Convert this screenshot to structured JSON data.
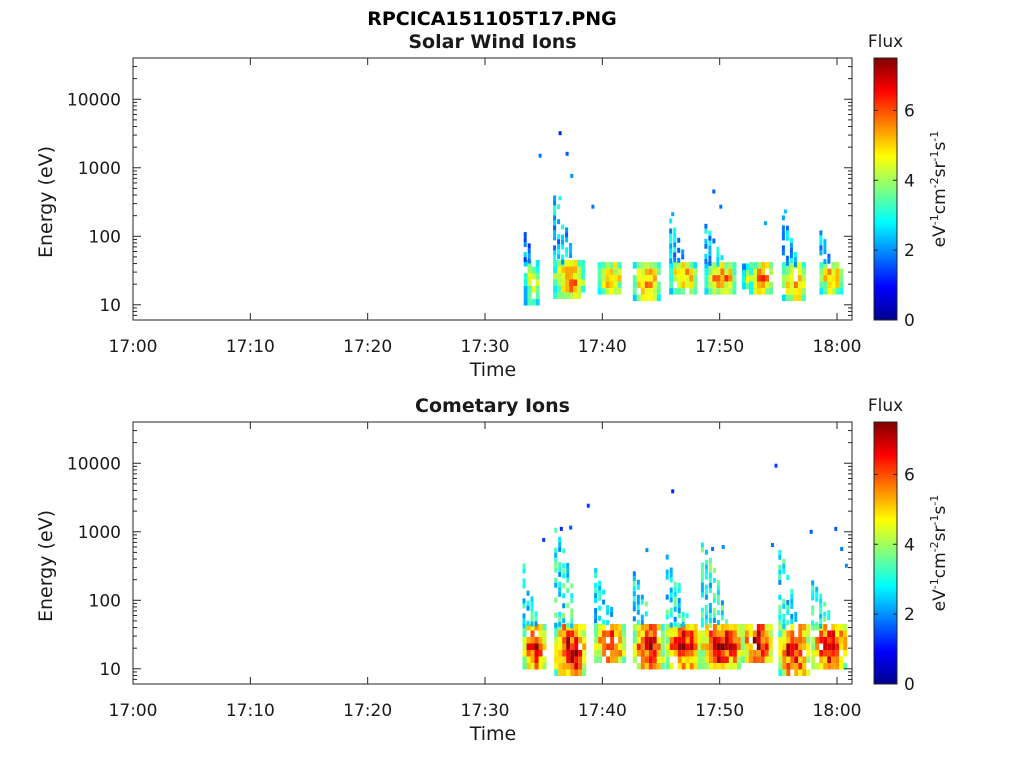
{
  "page": {
    "filename": "RPCICA151105T17.PNG"
  },
  "chart_data": [
    {
      "type": "heatmap",
      "title": "Solar Wind Ions",
      "xlabel": "Time",
      "ylabel": "Energy (eV)",
      "x_ticks": [
        "17:00",
        "17:10",
        "17:20",
        "17:30",
        "17:40",
        "17:50",
        "18:00"
      ],
      "x_range_minutes": [
        0,
        61
      ],
      "y_scale": "log",
      "y_ticks": [
        "10",
        "100",
        "1000",
        "10000"
      ],
      "y_range": [
        6,
        40000
      ],
      "colorbar": {
        "title": "Flux",
        "label": "eV-1cm-2sr-1s-1",
        "ticks": [
          "0",
          "2",
          "4",
          "6"
        ],
        "range": [
          0,
          7.5
        ],
        "colormap": "jet"
      },
      "bursts": [
        {
          "start": 33.3,
          "end": 34.6,
          "e_low": 12,
          "e_high": 45,
          "peak": 4.6,
          "tail": 70
        },
        {
          "start": 35.8,
          "end": 38.3,
          "e_low": 13,
          "e_high": 45,
          "peak": 5.8,
          "tail": 350
        },
        {
          "start": 39.6,
          "end": 41.6,
          "e_low": 15,
          "e_high": 42,
          "peak": 5.6,
          "tail": 0
        },
        {
          "start": 42.6,
          "end": 44.7,
          "e_low": 13,
          "e_high": 42,
          "peak": 5.7,
          "tail": 0
        },
        {
          "start": 45.7,
          "end": 47.8,
          "e_low": 17,
          "e_high": 42,
          "peak": 5.8,
          "tail": 140
        },
        {
          "start": 48.7,
          "end": 51.2,
          "e_low": 17,
          "e_high": 42,
          "peak": 5.9,
          "tail": 110
        },
        {
          "start": 51.9,
          "end": 53.0,
          "e_low": 18,
          "e_high": 40,
          "peak": 4.5,
          "tail": 0
        },
        {
          "start": 52.5,
          "end": 54.4,
          "e_low": 17,
          "e_high": 42,
          "peak": 6.0,
          "tail": 0
        },
        {
          "start": 55.3,
          "end": 57.2,
          "e_low": 12,
          "e_high": 42,
          "peak": 5.8,
          "tail": 160
        },
        {
          "start": 58.5,
          "end": 60.3,
          "e_low": 17,
          "e_high": 42,
          "peak": 5.8,
          "tail": 80
        }
      ],
      "sparse_points": [
        {
          "t": 34.7,
          "e": 1500,
          "v": 1.8
        },
        {
          "t": 36.4,
          "e": 3200,
          "v": 1.2
        },
        {
          "t": 37.0,
          "e": 1600,
          "v": 1.6
        },
        {
          "t": 37.4,
          "e": 760,
          "v": 2.0
        },
        {
          "t": 39.2,
          "e": 270,
          "v": 1.8
        },
        {
          "t": 46.0,
          "e": 210,
          "v": 2.2
        },
        {
          "t": 49.5,
          "e": 450,
          "v": 1.6
        },
        {
          "t": 50.1,
          "e": 270,
          "v": 1.8
        },
        {
          "t": 53.9,
          "e": 155,
          "v": 2.2
        },
        {
          "t": 55.6,
          "e": 230,
          "v": 2.4
        },
        {
          "t": 36.4,
          "e": 360,
          "v": 2.8
        }
      ]
    },
    {
      "type": "heatmap",
      "title": "Cometary Ions",
      "xlabel": "Time",
      "ylabel": "Energy (eV)",
      "x_ticks": [
        "17:00",
        "17:10",
        "17:20",
        "17:30",
        "17:40",
        "17:50",
        "18:00"
      ],
      "x_range_minutes": [
        0,
        61
      ],
      "y_scale": "log",
      "y_ticks": [
        "10",
        "100",
        "1000",
        "10000"
      ],
      "y_range": [
        6,
        40000
      ],
      "colorbar": {
        "title": "Flux",
        "label": "eV-1cm-2sr-1s-1",
        "ticks": [
          "0",
          "2",
          "4",
          "6"
        ],
        "range": [
          0,
          7.5
        ],
        "colormap": "jet"
      },
      "bursts": [
        {
          "start": 33.2,
          "end": 35.0,
          "e_low": 11,
          "e_high": 45,
          "peak": 7.0,
          "tail": 300
        },
        {
          "start": 35.9,
          "end": 38.5,
          "e_low": 8,
          "e_high": 45,
          "peak": 7.2,
          "tail": 1100
        },
        {
          "start": 39.3,
          "end": 42.0,
          "e_low": 13,
          "e_high": 45,
          "peak": 6.6,
          "tail": 250
        },
        {
          "start": 42.6,
          "end": 45.0,
          "e_low": 11,
          "e_high": 45,
          "peak": 7.0,
          "tail": 220
        },
        {
          "start": 45.4,
          "end": 48.2,
          "e_low": 11,
          "e_high": 45,
          "peak": 7.0,
          "tail": 420
        },
        {
          "start": 48.4,
          "end": 51.6,
          "e_low": 11,
          "e_high": 45,
          "peak": 7.3,
          "tail": 650
        },
        {
          "start": 51.8,
          "end": 54.5,
          "e_low": 14,
          "e_high": 45,
          "peak": 7.1,
          "tail": 0
        },
        {
          "start": 55.0,
          "end": 57.5,
          "e_low": 8,
          "e_high": 45,
          "peak": 7.0,
          "tail": 500
        },
        {
          "start": 57.8,
          "end": 60.7,
          "e_low": 11,
          "e_high": 45,
          "peak": 7.1,
          "tail": 150
        }
      ],
      "sparse_points": [
        {
          "t": 35.0,
          "e": 760,
          "v": 1.4
        },
        {
          "t": 36.5,
          "e": 1100,
          "v": 1.2
        },
        {
          "t": 37.3,
          "e": 1150,
          "v": 1.6
        },
        {
          "t": 38.8,
          "e": 2400,
          "v": 1.4
        },
        {
          "t": 46.0,
          "e": 3900,
          "v": 1.2
        },
        {
          "t": 43.8,
          "e": 540,
          "v": 2.0
        },
        {
          "t": 49.4,
          "e": 560,
          "v": 1.8
        },
        {
          "t": 50.3,
          "e": 600,
          "v": 2.0
        },
        {
          "t": 54.8,
          "e": 9200,
          "v": 1.4
        },
        {
          "t": 54.5,
          "e": 640,
          "v": 1.8
        },
        {
          "t": 59.9,
          "e": 1100,
          "v": 1.6
        },
        {
          "t": 60.4,
          "e": 560,
          "v": 1.8
        },
        {
          "t": 60.8,
          "e": 320,
          "v": 2.0
        },
        {
          "t": 57.8,
          "e": 1000,
          "v": 1.6
        }
      ]
    }
  ]
}
